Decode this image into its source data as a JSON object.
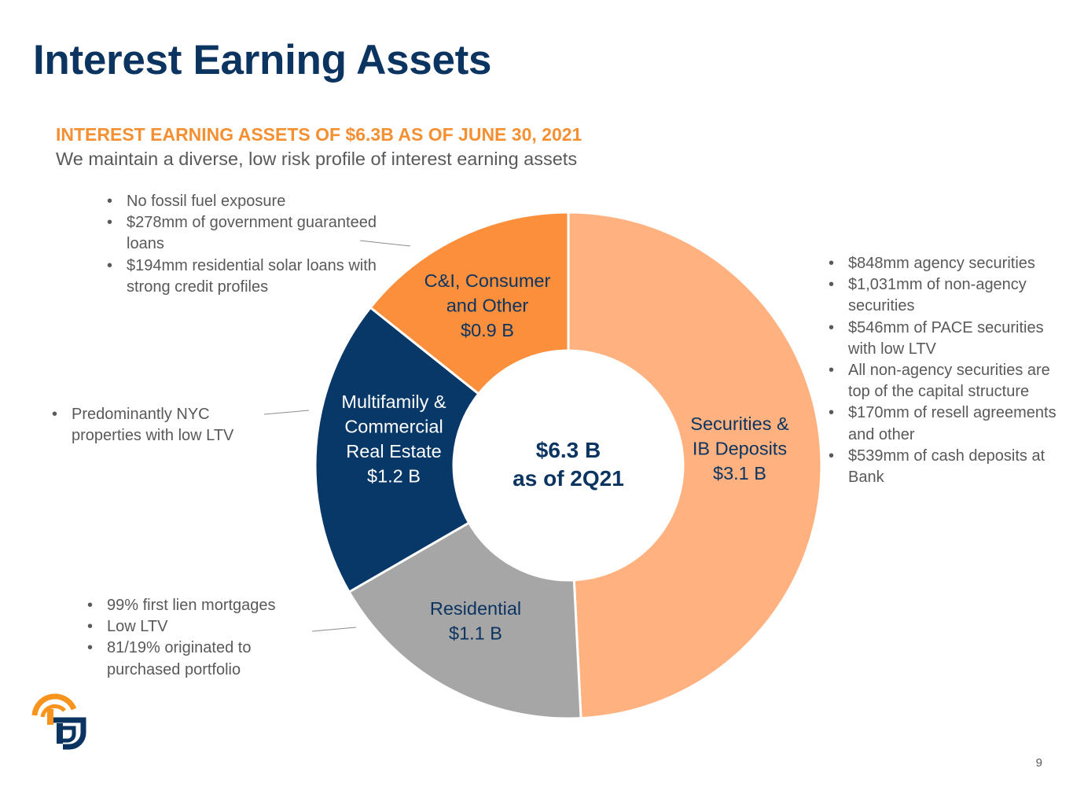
{
  "page": {
    "title": "Interest Earning Assets",
    "subtitle": "INTEREST EARNING ASSETS OF $6.3B AS OF JUNE 30, 2021",
    "tagline": "We maintain a diverse, low risk profile of interest earning assets",
    "page_number": "9"
  },
  "chart_data": {
    "type": "pie",
    "variant": "donut",
    "center_label": [
      "$6.3 B",
      "as of 2Q21"
    ],
    "categories": [
      "Securities & IB Deposits",
      "Residential",
      "Multifamily & Commercial Real Estate",
      "C&I, Consumer and Other"
    ],
    "values": [
      3.1,
      1.1,
      1.2,
      0.9
    ],
    "unit": "$B",
    "slices": [
      {
        "label_lines": [
          "Securities &",
          "IB Deposits",
          "$3.1 B"
        ],
        "value": 3.1,
        "color": "#ffb27f",
        "text_color": "#0c3461"
      },
      {
        "label_lines": [
          "Residential",
          "$1.1 B"
        ],
        "value": 1.1,
        "color": "#a6a6a6",
        "text_color": "#0c3461"
      },
      {
        "label_lines": [
          "Multifamily &",
          "Commercial",
          "Real Estate",
          "$1.2 B"
        ],
        "value": 1.2,
        "color": "#073868",
        "text_color": "#ffffff"
      },
      {
        "label_lines": [
          "C&I, Consumer",
          "and Other",
          "$0.9 B"
        ],
        "value": 0.9,
        "color": "#fb8f3c",
        "text_color": "#0c3461"
      }
    ]
  },
  "annotations": {
    "ci": [
      "No fossil fuel exposure",
      "$278mm of government guaranteed loans",
      "$194mm residential solar loans with strong credit profiles"
    ],
    "cre": [
      "Predominantly NYC properties with low LTV"
    ],
    "residential": [
      "99% first lien mortgages",
      "Low LTV",
      "81/19% originated to purchased portfolio"
    ],
    "securities": [
      "$848mm agency securities",
      "$1,031mm of non-agency securities",
      "$546mm of PACE securities with low LTV",
      "All non-agency securities are top of the capital structure",
      "$170mm of resell agreements and other",
      "$539mm of cash deposits at Bank"
    ]
  },
  "colors": {
    "title": "#0c3461",
    "subtitle": "#f59032",
    "body_text": "#595959"
  },
  "logo": {
    "icon": "company-logo-icon"
  }
}
